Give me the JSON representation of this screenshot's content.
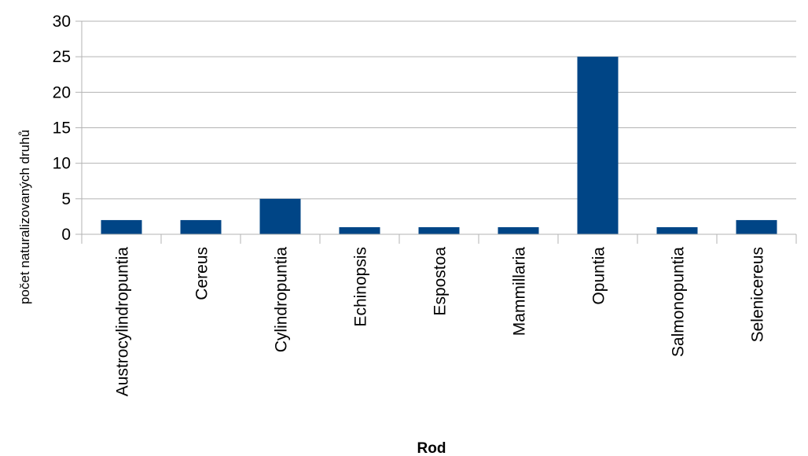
{
  "chart_data": {
    "type": "bar",
    "title": "",
    "xlabel": "Rod",
    "ylabel": "počet naturalizovaných druhů",
    "categories": [
      "Austrocylindropuntia",
      "Cereus",
      "Cylindropuntia",
      "Echinopsis",
      "Espostoa",
      "Mammillaria",
      "Opuntia",
      "Salmonopuntia",
      "Selenicereus"
    ],
    "values": [
      2,
      2,
      5,
      1,
      1,
      1,
      25,
      1,
      2
    ],
    "ylim": [
      0,
      30
    ],
    "yticks": [
      0,
      5,
      10,
      15,
      20,
      25,
      30
    ],
    "grid": true,
    "legend": "none",
    "colors": {
      "bar": "#004586",
      "grid": "#b3b3b3",
      "axis": "#b3b3b3"
    }
  }
}
